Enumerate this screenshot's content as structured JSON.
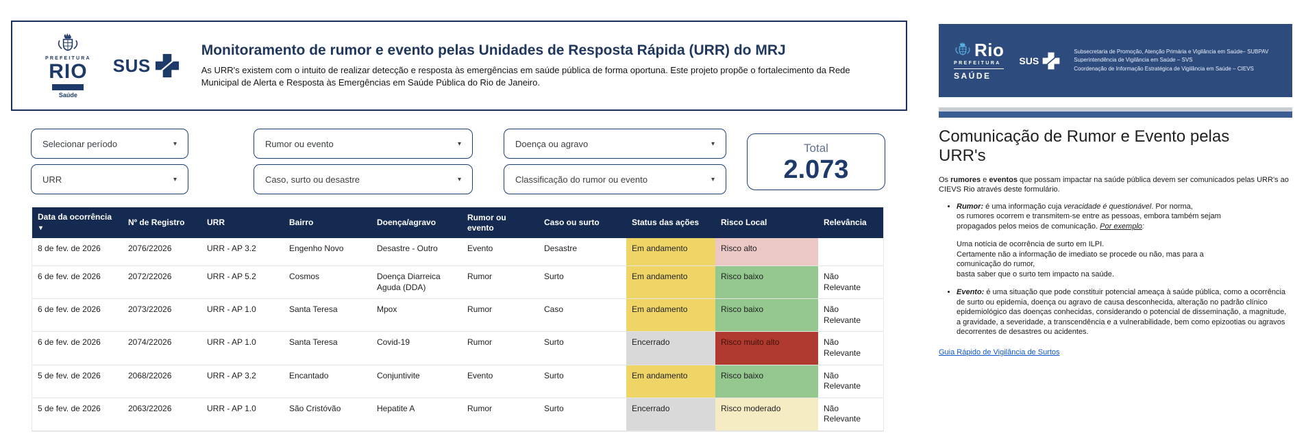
{
  "icons": {
    "dropdown_caret": "▾",
    "sort_desc": "▾"
  },
  "header": {
    "logo": {
      "prefeitura": "PREFEITURA",
      "rio": "RIO",
      "saude": "Saúde",
      "sus": "SUS"
    },
    "title": "Monitoramento de rumor e evento pelas Unidades de Resposta Rápida (URR) do MRJ",
    "subtitle": "As URR's existem com o intuito de realizar detecção e resposta às emergências em saúde pública de forma oportuna. Este projeto propõe o fortalecimento da Rede Municipal de Alerta e Resposta às Emergências em Saúde Pública do Rio de Janeiro."
  },
  "filters": {
    "row1": [
      "Selecionar período",
      "Rumor ou evento",
      "Doença ou agravo"
    ],
    "row2": [
      "URR",
      "Caso, surto ou desastre",
      "Classificação do rumor ou evento"
    ]
  },
  "total": {
    "label": "Total",
    "value": "2.073"
  },
  "table": {
    "columns": [
      "Data da ocorrência",
      "Nº de Registro",
      "URR",
      "Bairro",
      "Doença/agravo",
      "Rumor ou evento",
      "Caso ou surto",
      "Status das ações",
      "Risco Local",
      "Relevância"
    ],
    "sort_column": "Data da ocorrência",
    "rows": [
      {
        "data": "8 de fev. de 2026",
        "registro": "2076/22026",
        "urr": "URR - AP 3.2",
        "bairro": "Engenho Novo",
        "doenca": "Desastre - Outro",
        "rumor_evento": "Evento",
        "caso_surto": "Desastre",
        "status": "Em andamento",
        "risco": "Risco alto",
        "relevancia": ""
      },
      {
        "data": "6 de fev. de 2026",
        "registro": "2072/22026",
        "urr": "URR - AP 5.2",
        "bairro": "Cosmos",
        "doenca": "Doença Diarreica Aguda (DDA)",
        "rumor_evento": "Rumor",
        "caso_surto": "Surto",
        "status": "Em andamento",
        "risco": "Risco baixo",
        "relevancia": "Não Relevante"
      },
      {
        "data": "6 de fev. de 2026",
        "registro": "2073/22026",
        "urr": "URR - AP 1.0",
        "bairro": "Santa Teresa",
        "doenca": "Mpox",
        "rumor_evento": "Rumor",
        "caso_surto": "Caso",
        "status": "Em andamento",
        "risco": "Risco baixo",
        "relevancia": "Não Relevante"
      },
      {
        "data": "6 de fev. de 2026",
        "registro": "2074/22026",
        "urr": "URR - AP 1.0",
        "bairro": "Santa Teresa",
        "doenca": "Covid-19",
        "rumor_evento": "Rumor",
        "caso_surto": "Surto",
        "status": "Encerrado",
        "risco": "Risco muito alto",
        "relevancia": "Não Relevante"
      },
      {
        "data": "5 de fev. de 2026",
        "registro": "2068/22026",
        "urr": "URR - AP 3.2",
        "bairro": "Encantado",
        "doenca": "Conjuntivite",
        "rumor_evento": "Evento",
        "caso_surto": "Surto",
        "status": "Em andamento",
        "risco": "Risco baixo",
        "relevancia": "Não Relevante"
      },
      {
        "data": "5 de fev. de 2026",
        "registro": "2063/22026",
        "urr": "URR - AP 1.0",
        "bairro": "São Cristóvão",
        "doenca": "Hepatite A",
        "rumor_evento": "Rumor",
        "caso_surto": "Surto",
        "status": "Encerrado",
        "risco": "Risco moderado",
        "relevancia": "Não Relevante"
      }
    ],
    "status_colors": {
      "Em andamento": "#efd566",
      "Encerrado": "#d9d9d9"
    },
    "risco_colors": {
      "Risco alto": "#ebc8c4",
      "Risco baixo": "#94c88e",
      "Risco muito alto": "#b03a30",
      "Risco moderado": "#f5ecc3"
    },
    "risco_text_colors": {
      "Risco muito alto": "#42100a"
    }
  },
  "right_panel": {
    "logo": {
      "rio": "Rio",
      "prefeitura": "PREFEITURA",
      "saude": "SAÚDE",
      "sus": "SUS"
    },
    "org_lines": [
      "Subsecretaria de Promoção, Atenção Primária e Vigilância em Saúde– SUBPAV",
      "Superintendência de Vigilância em Saúde – SVS",
      "Coordenação de Informação Estratégica de Vigilância em Saúde – CIEVS"
    ],
    "title": "Comunicação de Rumor e Evento pelas URR's",
    "intro": [
      {
        "t": "Os "
      },
      {
        "t": "rumores",
        "b": true
      },
      {
        "t": " e "
      },
      {
        "t": "eventos",
        "b": true
      },
      {
        "t": " que possam impactar na saúde pública devem ser comunicados pelas URR's ao CIEVS Rio através deste formulário."
      }
    ],
    "bullets": [
      {
        "segments": [
          {
            "t": "Rumor:",
            "b": true,
            "i": true
          },
          {
            "t": " é uma informação cuja "
          },
          {
            "t": "veracidade é questionável",
            "i": true
          },
          {
            "t": ". Por norma,\nos rumores ocorrem e transmitem-se entre as pessoas, embora também sejam\npropagados pelos meios de comunicação. "
          },
          {
            "t": "Por exemplo",
            "i": true,
            "u": true
          },
          {
            "t": ":",
            "i": true
          }
        ],
        "sub": "Uma notícia de ocorrência de surto em ILPI.\nCertamente não a informação de imediato se procede ou não, mas para a\ncomunicação do rumor,\nbasta saber que o surto tem impacto na saúde."
      },
      {
        "segments": [
          {
            "t": "Evento:",
            "b": true,
            "i": true
          },
          {
            "t": " é uma situação que pode constituir potencial ameaça à saúde pública, como a ocorrência de surto ou epidemia, doença ou agravo de causa desconhecida, alteração no padrão clínico epidemiológico das doenças conhecidas, considerando o potencial de disseminação, a magnitude, a gravidade, a severidade, a transcendência e a vulnerabilidade, bem como epizootias ou agravos decorrentes de desastres ou acidentes."
          }
        ]
      }
    ],
    "link": "Guia Rápido de Vigilância de Surtos"
  }
}
